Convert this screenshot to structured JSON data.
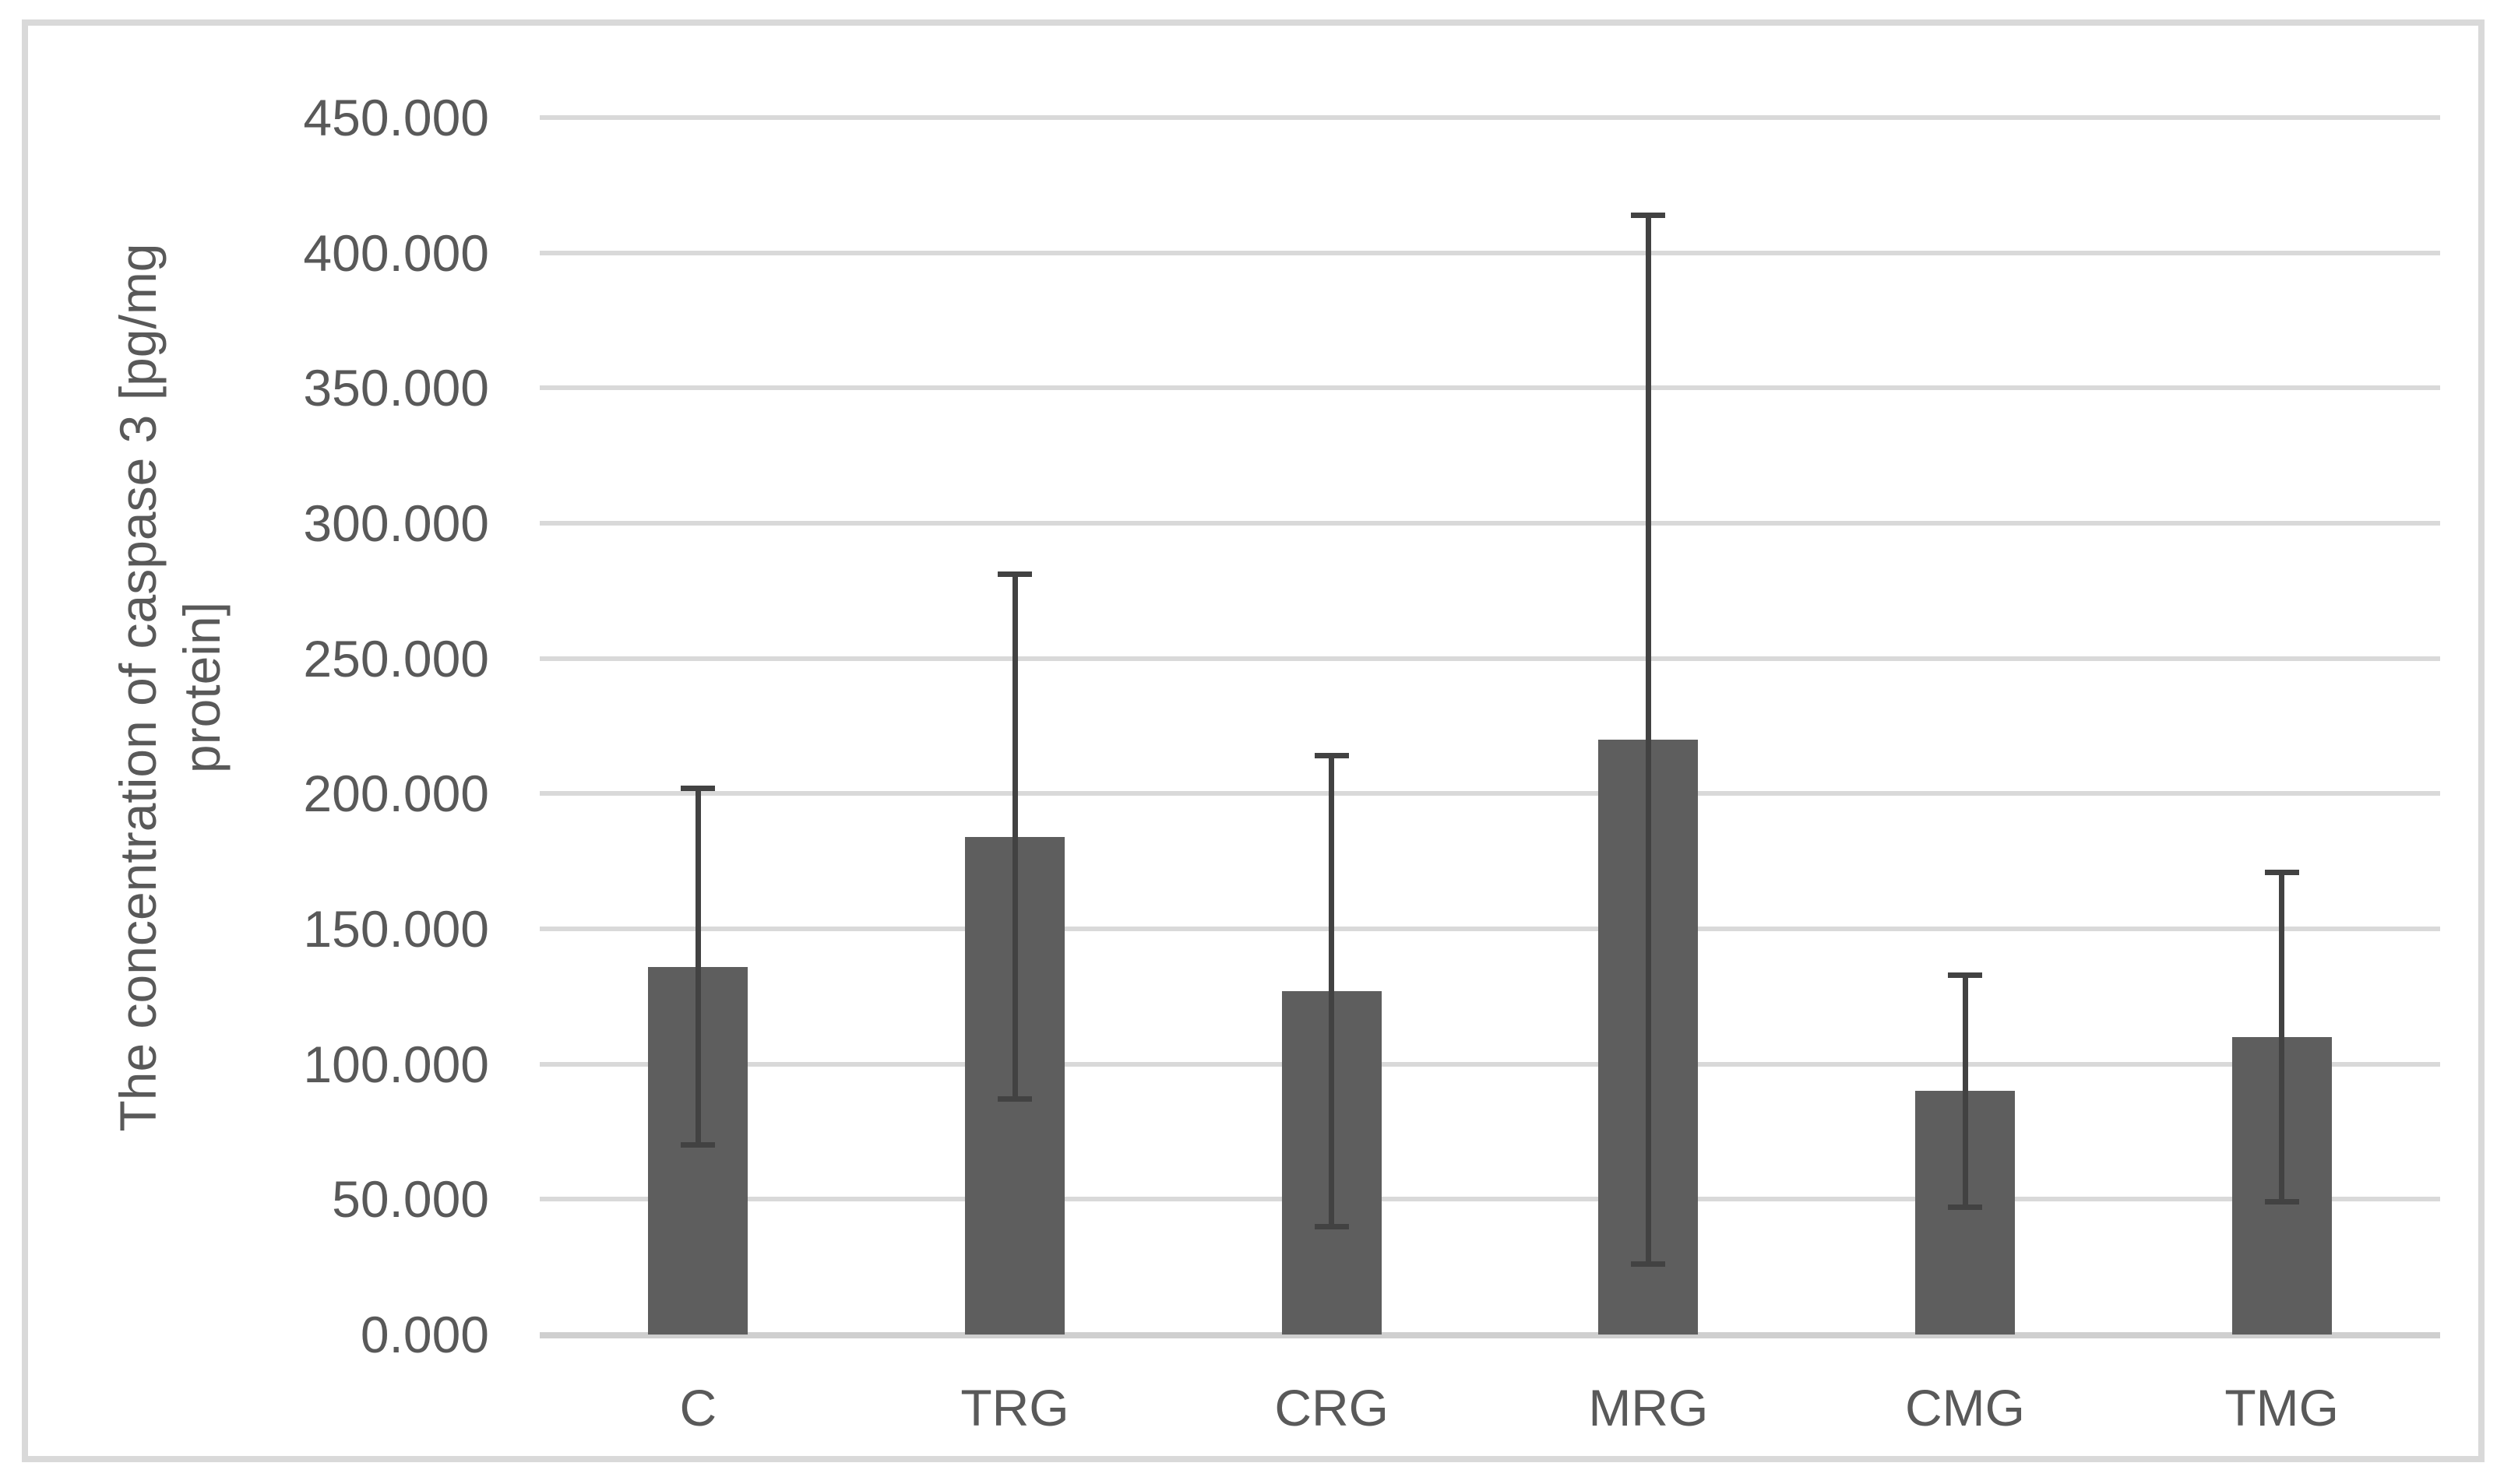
{
  "chart_data": {
    "type": "bar",
    "title": "",
    "categories": [
      "C",
      "TRG",
      "CRG",
      "MRG",
      "CMG",
      "TMG"
    ],
    "series": [
      {
        "name": "The concentration of caspase 3",
        "values": [
          136,
          184,
          127,
          220,
          90,
          110
        ],
        "error_plus": [
          66,
          97,
          87,
          194,
          43,
          61
        ],
        "error_minus": [
          66,
          97,
          87,
          194,
          43,
          61
        ]
      }
    ],
    "xlabel": "",
    "ylabel": "The concentration of caspase 3 [pg/mg protein]",
    "ylabel_line1": "The concentration of caspase 3 [pg/mg",
    "ylabel_line2": "protein]",
    "ylim": [
      0,
      450
    ],
    "ytick_step": 50,
    "ytick_labels": [
      "0.000",
      "50.000",
      "100.000",
      "150.000",
      "200.000",
      "250.000",
      "300.000",
      "350.000",
      "400.000",
      "450.000"
    ],
    "grid": true,
    "legend": false,
    "legend_position": "none"
  },
  "colors": {
    "bar_fill": "#5e5e5e",
    "error_bar": "#424242",
    "gridline": "#d9d9d9",
    "axis_line": "#cfcfcf",
    "text": "#595959",
    "frame_border": "#d9d9d9",
    "background": "#ffffff"
  }
}
